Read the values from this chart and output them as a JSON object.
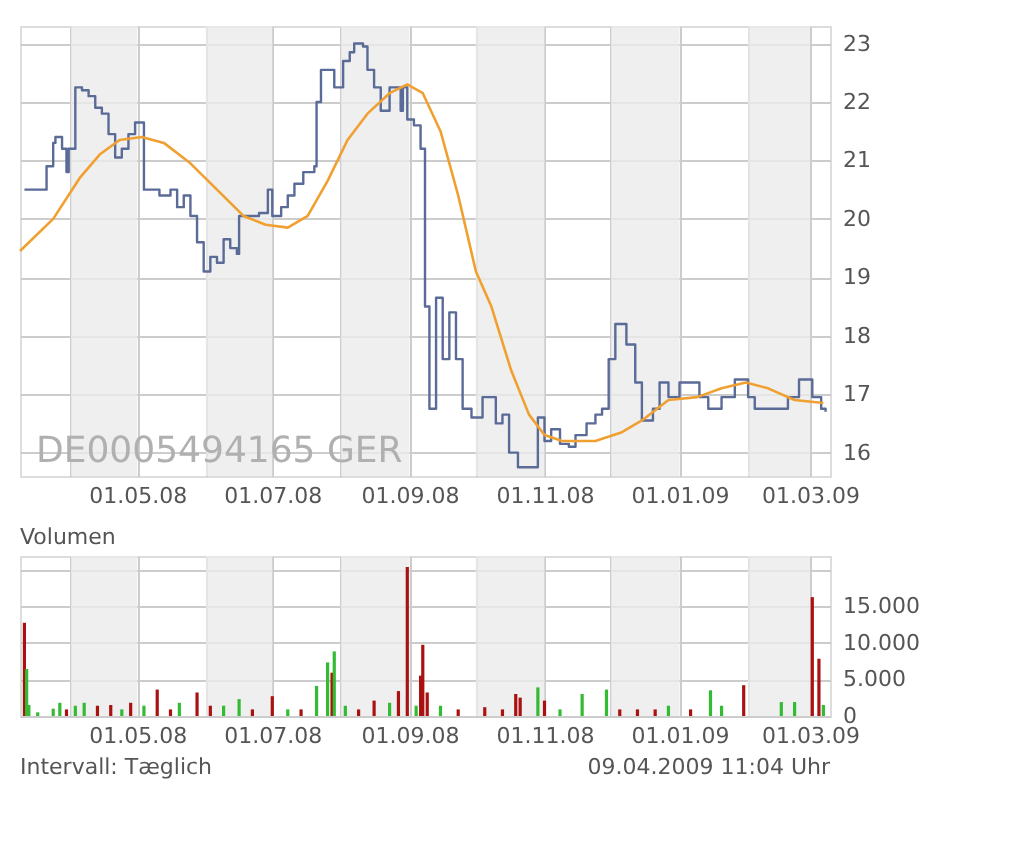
{
  "chart_data": [
    {
      "type": "line",
      "annotations": [
        "DE0005494165   GER"
      ],
      "xlim": [
        "2008-03-09",
        "2009-03-10"
      ],
      "xticks": [
        {
          "value": "2008-04-01",
          "label": null
        },
        {
          "value": "2008-05-01",
          "label": "01.05.08"
        },
        {
          "value": "2008-06-01",
          "label": null
        },
        {
          "value": "2008-07-01",
          "label": "01.07.08"
        },
        {
          "value": "2008-08-01",
          "label": null
        },
        {
          "value": "2008-09-01",
          "label": "01.09.08"
        },
        {
          "value": "2008-10-01",
          "label": null
        },
        {
          "value": "2008-11-01",
          "label": "01.11.08"
        },
        {
          "value": "2008-12-01",
          "label": null
        },
        {
          "value": "2009-01-01",
          "label": "01.01.09"
        },
        {
          "value": "2009-02-01",
          "label": null
        },
        {
          "value": "2009-03-01",
          "label": "01.03.09"
        }
      ],
      "ylim": [
        15.6,
        23.3
      ],
      "yticks": [
        16,
        17,
        18,
        19,
        20,
        21,
        22,
        23
      ],
      "grid": true,
      "bands": [
        {
          "axis": "x",
          "from": "2008-04-01",
          "to": "2008-05-01",
          "color": "#ebebeb"
        },
        {
          "axis": "x",
          "from": "2008-06-01",
          "to": "2008-07-01",
          "color": "#ebebeb"
        },
        {
          "axis": "x",
          "from": "2008-08-01",
          "to": "2008-09-01",
          "color": "#ebebeb"
        },
        {
          "axis": "x",
          "from": "2008-10-01",
          "to": "2008-11-01",
          "color": "#ebebeb"
        },
        {
          "axis": "x",
          "from": "2008-12-01",
          "to": "2009-01-01",
          "color": "#ebebeb"
        },
        {
          "axis": "x",
          "from": "2009-02-01",
          "to": "2009-03-01",
          "color": "#ebebeb"
        }
      ],
      "series": [
        {
          "type": "step",
          "color": "#5a6b98",
          "x": [
            "2008-03-11",
            "2008-03-20",
            "2008-03-21",
            "2008-03-24",
            "2008-03-25",
            "2008-03-28",
            "2008-03-30",
            "2008-03-31",
            "2008-04-03",
            "2008-04-06",
            "2008-04-09",
            "2008-04-12",
            "2008-04-15",
            "2008-04-18",
            "2008-04-21",
            "2008-04-24",
            "2008-04-27",
            "2008-04-30",
            "2008-05-04",
            "2008-05-07",
            "2008-05-11",
            "2008-05-16",
            "2008-05-19",
            "2008-05-22",
            "2008-05-25",
            "2008-05-28",
            "2008-05-31",
            "2008-06-03",
            "2008-06-06",
            "2008-06-09",
            "2008-06-12",
            "2008-06-15",
            "2008-06-16",
            "2008-06-20",
            "2008-06-25",
            "2008-06-29",
            "2008-07-01",
            "2008-07-05",
            "2008-07-08",
            "2008-07-11",
            "2008-07-15",
            "2008-07-20",
            "2008-07-21",
            "2008-07-23",
            "2008-07-29",
            "2008-08-02",
            "2008-08-05",
            "2008-08-07",
            "2008-08-11",
            "2008-08-13",
            "2008-08-16",
            "2008-08-19",
            "2008-08-23",
            "2008-08-28",
            "2008-08-29",
            "2008-08-31",
            "2008-09-03",
            "2008-09-06",
            "2008-09-08",
            "2008-09-10",
            "2008-09-13",
            "2008-09-16",
            "2008-09-19",
            "2008-09-22",
            "2008-09-25",
            "2008-09-29",
            "2008-10-04",
            "2008-10-10",
            "2008-10-13",
            "2008-10-16",
            "2008-10-20",
            "2008-10-25",
            "2008-10-29",
            "2008-11-01",
            "2008-11-04",
            "2008-11-08",
            "2008-11-12",
            "2008-11-15",
            "2008-11-20",
            "2008-11-24",
            "2008-11-27",
            "2008-11-30",
            "2008-12-03",
            "2008-12-08",
            "2008-12-12",
            "2008-12-15",
            "2008-12-20",
            "2008-12-23",
            "2008-12-27",
            "2009-01-01",
            "2009-01-10",
            "2009-01-14",
            "2009-01-20",
            "2009-01-26",
            "2009-02-01",
            "2009-02-04",
            "2009-02-16",
            "2009-02-19",
            "2009-02-24",
            "2009-03-02",
            "2009-03-06",
            "2009-03-08"
          ],
          "values": [
            20.5,
            20.5,
            20.9,
            21.3,
            21.4,
            21.2,
            20.8,
            21.2,
            22.25,
            22.2,
            22.1,
            21.9,
            21.8,
            21.45,
            21.05,
            21.2,
            21.45,
            21.65,
            20.5,
            20.5,
            20.4,
            20.5,
            20.2,
            20.4,
            20.05,
            19.6,
            19.1,
            19.35,
            19.25,
            19.65,
            19.5,
            19.4,
            20.05,
            20.05,
            20.1,
            20.5,
            20.05,
            20.2,
            20.4,
            20.6,
            20.8,
            20.9,
            22.0,
            22.55,
            22.25,
            22.7,
            22.85,
            23.0,
            22.95,
            22.55,
            22.25,
            21.85,
            22.25,
            21.85,
            22.25,
            21.7,
            21.6,
            21.2,
            18.5,
            16.75,
            18.65,
            17.6,
            18.4,
            17.6,
            16.75,
            16.6,
            16.95,
            16.5,
            16.65,
            16.0,
            15.75,
            15.75,
            16.6,
            16.2,
            16.4,
            16.15,
            16.1,
            16.3,
            16.5,
            16.65,
            16.75,
            17.6,
            18.2,
            17.85,
            17.2,
            16.55,
            16.75,
            17.2,
            16.95,
            17.2,
            16.95,
            16.75,
            16.95,
            17.25,
            16.95,
            16.75,
            16.75,
            16.95,
            17.25,
            16.95,
            16.75,
            16.7
          ]
        },
        {
          "type": "line",
          "color": "#f0a030",
          "x": [
            "2008-03-09",
            "2008-03-24",
            "2008-04-05",
            "2008-04-14",
            "2008-04-23",
            "2008-05-03",
            "2008-05-13",
            "2008-05-25",
            "2008-06-06",
            "2008-06-18",
            "2008-06-28",
            "2008-07-08",
            "2008-07-17",
            "2008-07-26",
            "2008-08-04",
            "2008-08-13",
            "2008-08-23",
            "2008-08-31",
            "2008-09-07",
            "2008-09-15",
            "2008-09-23",
            "2008-10-01",
            "2008-10-08",
            "2008-10-17",
            "2008-10-25",
            "2008-11-01",
            "2008-11-09",
            "2008-11-24",
            "2008-12-06",
            "2008-12-15",
            "2008-12-27",
            "2009-01-09",
            "2009-01-20",
            "2009-01-31",
            "2009-02-10",
            "2009-02-22",
            "2009-03-07"
          ],
          "values": [
            19.45,
            20.0,
            20.7,
            21.1,
            21.35,
            21.4,
            21.3,
            20.95,
            20.5,
            20.05,
            19.9,
            19.85,
            20.05,
            20.65,
            21.35,
            21.8,
            22.15,
            22.3,
            22.15,
            21.5,
            20.4,
            19.1,
            18.5,
            17.4,
            16.65,
            16.3,
            16.2,
            16.2,
            16.35,
            16.55,
            16.9,
            16.95,
            17.1,
            17.2,
            17.1,
            16.9,
            16.85
          ]
        }
      ]
    },
    {
      "type": "bar",
      "title": "Volumen",
      "annotations": [
        "Intervall: Tæglich",
        "09.04.2009   11:04 Uhr"
      ],
      "xlim": [
        "2008-03-09",
        "2009-03-10"
      ],
      "xticks": [
        {
          "value": "2008-04-01",
          "label": null
        },
        {
          "value": "2008-05-01",
          "label": "01.05.08"
        },
        {
          "value": "2008-06-01",
          "label": null
        },
        {
          "value": "2008-07-01",
          "label": "01.07.08"
        },
        {
          "value": "2008-08-01",
          "label": null
        },
        {
          "value": "2008-09-01",
          "label": "01.09.08"
        },
        {
          "value": "2008-10-01",
          "label": null
        },
        {
          "value": "2008-11-01",
          "label": "01.11.08"
        },
        {
          "value": "2008-12-01",
          "label": null
        },
        {
          "value": "2009-01-01",
          "label": "01.01.09"
        },
        {
          "value": "2009-02-01",
          "label": null
        },
        {
          "value": "2009-03-01",
          "label": "01.03.09"
        }
      ],
      "ylim": [
        0,
        21800
      ],
      "yticks": [
        {
          "value": 0,
          "label": "0"
        },
        {
          "value": 5000,
          "label": "5.000"
        },
        {
          "value": 10000,
          "label": "10.000"
        },
        {
          "value": 15000,
          "label": "15.000"
        },
        {
          "value": 20000,
          "label": null
        }
      ],
      "grid": true,
      "bands": [
        {
          "axis": "x",
          "from": "2008-04-01",
          "to": "2008-05-01",
          "color": "#ebebeb"
        },
        {
          "axis": "x",
          "from": "2008-06-01",
          "to": "2008-07-01",
          "color": "#ebebeb"
        },
        {
          "axis": "x",
          "from": "2008-08-01",
          "to": "2008-09-01",
          "color": "#ebebeb"
        },
        {
          "axis": "x",
          "from": "2008-10-01",
          "to": "2008-11-01",
          "color": "#ebebeb"
        },
        {
          "axis": "x",
          "from": "2008-12-01",
          "to": "2009-01-01",
          "color": "#ebebeb"
        },
        {
          "axis": "x",
          "from": "2009-02-01",
          "to": "2009-03-01",
          "color": "#ebebeb"
        }
      ],
      "x": [
        "2008-03-11",
        "2008-03-12",
        "2008-03-13",
        "2008-03-17",
        "2008-03-24",
        "2008-03-27",
        "2008-03-30",
        "2008-04-03",
        "2008-04-07",
        "2008-04-13",
        "2008-04-19",
        "2008-04-24",
        "2008-04-28",
        "2008-05-04",
        "2008-05-10",
        "2008-05-16",
        "2008-05-20",
        "2008-05-28",
        "2008-06-03",
        "2008-06-09",
        "2008-06-16",
        "2008-06-22",
        "2008-07-01",
        "2008-07-08",
        "2008-07-14",
        "2008-07-21",
        "2008-07-26",
        "2008-07-28",
        "2008-07-29",
        "2008-08-03",
        "2008-08-09",
        "2008-08-16",
        "2008-08-23",
        "2008-08-27",
        "2008-08-31",
        "2008-09-04",
        "2008-09-06",
        "2008-09-07",
        "2008-09-09",
        "2008-09-15",
        "2008-09-23",
        "2008-10-05",
        "2008-10-13",
        "2008-10-19",
        "2008-10-21",
        "2008-10-29",
        "2008-11-01",
        "2008-11-08",
        "2008-11-18",
        "2008-11-29",
        "2008-12-05",
        "2008-12-13",
        "2008-12-21",
        "2008-12-27",
        "2009-01-06",
        "2009-01-15",
        "2009-01-20",
        "2009-01-30",
        "2009-02-16",
        "2009-02-22",
        "2009-03-02",
        "2009-03-05",
        "2009-03-07"
      ],
      "values": [
        12700,
        6400,
        1500,
        500,
        1000,
        1800,
        900,
        1400,
        1800,
        1400,
        1500,
        900,
        1800,
        1400,
        3600,
        900,
        1800,
        3200,
        1400,
        1400,
        2300,
        900,
        2700,
        900,
        900,
        4100,
        7300,
        5900,
        8800,
        1400,
        900,
        2100,
        1800,
        3400,
        20300,
        1400,
        5500,
        9700,
        3200,
        1400,
        900,
        1200,
        900,
        3000,
        2500,
        3900,
        2100,
        900,
        3000,
        3600,
        900,
        900,
        900,
        1400,
        900,
        3500,
        1400,
        4200,
        1900,
        1900,
        16200,
        7800,
        1500
      ],
      "colors": [
        "#aa1111",
        "#33bb33",
        "#33bb33",
        "#33bb33",
        "#33bb33",
        "#33bb33",
        "#aa1111",
        "#33bb33",
        "#33bb33",
        "#aa1111",
        "#aa1111",
        "#33bb33",
        "#aa1111",
        "#33bb33",
        "#aa1111",
        "#aa1111",
        "#33bb33",
        "#aa1111",
        "#aa1111",
        "#33bb33",
        "#33bb33",
        "#aa1111",
        "#aa1111",
        "#33bb33",
        "#aa1111",
        "#33bb33",
        "#33bb33",
        "#aa1111",
        "#33bb33",
        "#33bb33",
        "#aa1111",
        "#aa1111",
        "#33bb33",
        "#aa1111",
        "#aa1111",
        "#33bb33",
        "#aa1111",
        "#aa1111",
        "#aa1111",
        "#33bb33",
        "#aa1111",
        "#aa1111",
        "#aa1111",
        "#aa1111",
        "#aa1111",
        "#33bb33",
        "#aa1111",
        "#33bb33",
        "#33bb33",
        "#33bb33",
        "#aa1111",
        "#aa1111",
        "#aa1111",
        "#33bb33",
        "#aa1111",
        "#33bb33",
        "#33bb33",
        "#aa1111",
        "#33bb33",
        "#33bb33",
        "#aa1111",
        "#aa1111",
        "#33bb33"
      ]
    }
  ]
}
